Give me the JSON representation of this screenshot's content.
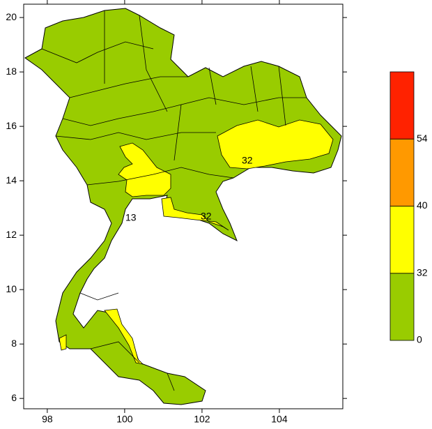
{
  "map": {
    "xlim": [
      97.39,
      105.64
    ],
    "ylim": [
      5.62,
      20.49
    ],
    "xticks": [
      98,
      100,
      102,
      104
    ],
    "yticks": [
      6,
      8,
      10,
      12,
      14,
      16,
      18,
      20
    ],
    "colorbar": {
      "levels": [
        0,
        32,
        40,
        54
      ],
      "colors": [
        "#99cc00",
        "#ffff00",
        "#ff9900",
        "#ff2200",
        "#ff2200"
      ]
    },
    "contour_labels": [
      "32",
      "32",
      "13"
    ]
  }
}
